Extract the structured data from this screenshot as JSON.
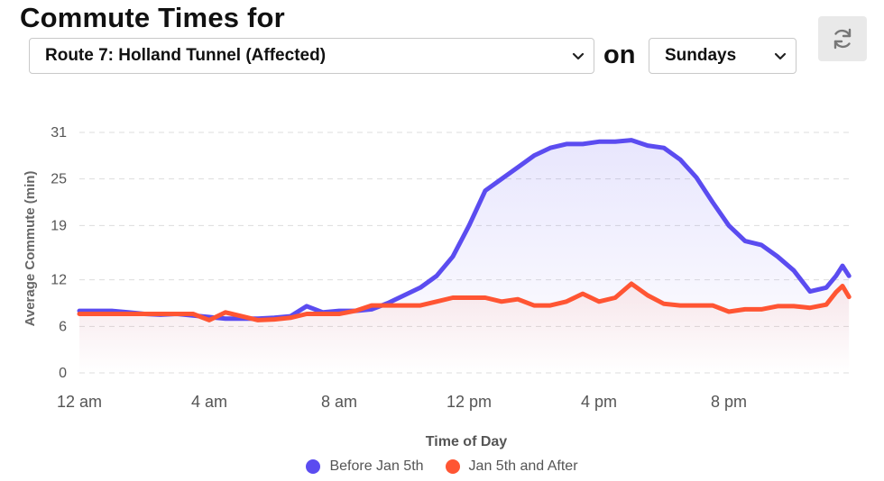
{
  "header": {
    "title": "Commute Times for",
    "route_select": "Route 7: Holland Tunnel (Affected)",
    "on_label": "on",
    "day_select": "Sundays",
    "refresh_icon": "refresh-icon"
  },
  "colors": {
    "before": "#5b4cf0",
    "after": "#ff5533",
    "grid": "#dddddd"
  },
  "chart_data": {
    "type": "area",
    "xlabel": "Time of Day",
    "ylabel": "Average Commute (min)",
    "ylim": [
      0,
      31
    ],
    "yticks": [
      0,
      6,
      12,
      19,
      25,
      31
    ],
    "xticks": [
      "12 am",
      "4 am",
      "8 am",
      "12 pm",
      "4 pm",
      "8 pm"
    ],
    "xtick_hours": [
      0,
      4,
      8,
      12,
      16,
      20
    ],
    "x_hours": [
      0,
      0.5,
      1,
      1.5,
      2,
      2.5,
      3,
      3.5,
      4,
      4.5,
      5,
      5.5,
      6,
      6.5,
      7,
      7.5,
      8,
      8.5,
      9,
      9.5,
      10,
      10.5,
      11,
      11.5,
      12,
      12.5,
      13,
      13.5,
      14,
      14.5,
      15,
      15.5,
      16,
      16.5,
      17,
      17.5,
      18,
      18.5,
      19,
      19.5,
      20,
      20.5,
      21,
      21.5,
      22,
      22.5,
      23,
      23.3,
      23.5,
      23.7
    ],
    "series": [
      {
        "name": "Before Jan 5th",
        "values": [
          8,
          8,
          8,
          7.8,
          7.6,
          7.5,
          7.6,
          7.4,
          7.2,
          7,
          7,
          7,
          7.1,
          7.3,
          8.6,
          7.8,
          8,
          8,
          8.2,
          9,
          10,
          11,
          12.5,
          15,
          19,
          23.5,
          25,
          26.5,
          28,
          29,
          29.5,
          29.5,
          29.8,
          29.8,
          30,
          29.3,
          29,
          27.5,
          25.2,
          22,
          19,
          17,
          16.5,
          15,
          13.2,
          10.5,
          11,
          12.5,
          13.8,
          12.5
        ]
      },
      {
        "name": "Jan 5th and After",
        "values": [
          7.6,
          7.6,
          7.6,
          7.6,
          7.6,
          7.6,
          7.6,
          7.6,
          6.8,
          7.8,
          7.3,
          6.8,
          6.9,
          7.1,
          7.6,
          7.6,
          7.6,
          8,
          8.7,
          8.7,
          8.7,
          8.7,
          9.2,
          9.7,
          9.7,
          9.7,
          9.2,
          9.5,
          8.7,
          8.7,
          9.2,
          10.2,
          9.2,
          9.7,
          11.5,
          10,
          8.9,
          8.7,
          8.7,
          8.7,
          7.9,
          8.2,
          8.2,
          8.6,
          8.6,
          8.4,
          8.8,
          10.4,
          11.2,
          9.8
        ]
      }
    ],
    "legend_position": "bottom",
    "grid": true
  }
}
